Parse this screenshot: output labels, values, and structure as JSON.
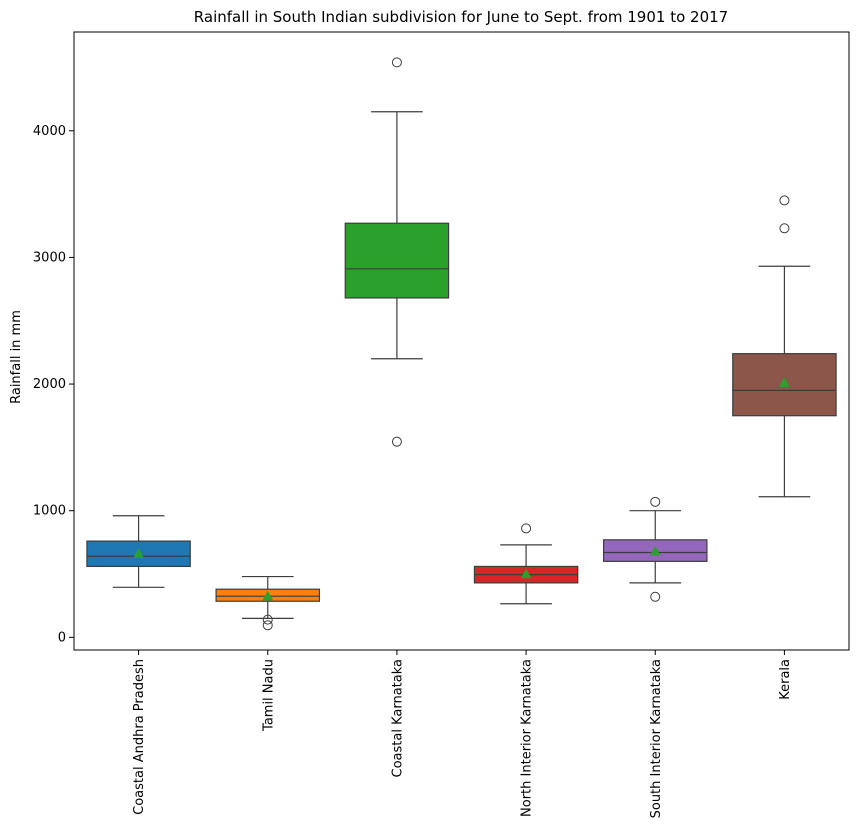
{
  "chart_data": {
    "type": "box",
    "title": "Rainfall in South Indian subdivision for June to Sept. from 1901 to 2017",
    "xlabel": "",
    "ylabel": "Rainfall in mm",
    "ylim": [
      -100,
      4780
    ],
    "yticks": [
      0,
      1000,
      2000,
      3000,
      4000
    ],
    "grid": false,
    "legend": "none",
    "mean_marker": "triangle",
    "mean_color": "#2ca02c",
    "categories": [
      "Coastal Andhra Pradesh",
      "Tamil Nadu",
      "Coastal Karnataka",
      "North Interior Karnataka",
      "South Interior Karnataka",
      "Kerala"
    ],
    "boxes": [
      {
        "color": "#1f77b4",
        "q1": 560,
        "median": 640,
        "q3": 760,
        "whisker_low": 395,
        "whisker_high": 960,
        "mean": 660,
        "outliers": []
      },
      {
        "color": "#ff7f0e",
        "q1": 285,
        "median": 325,
        "q3": 380,
        "whisker_low": 150,
        "whisker_high": 480,
        "mean": 325,
        "outliers": [
          140,
          95
        ]
      },
      {
        "color": "#2ca02c",
        "q1": 2680,
        "median": 2910,
        "q3": 3270,
        "whisker_low": 2200,
        "whisker_high": 4150,
        "mean": 2950,
        "outliers": [
          4540,
          1545
        ]
      },
      {
        "color": "#d62728",
        "q1": 430,
        "median": 495,
        "q3": 560,
        "whisker_low": 265,
        "whisker_high": 730,
        "mean": 500,
        "outliers": [
          860
        ]
      },
      {
        "color": "#9467bd",
        "q1": 600,
        "median": 670,
        "q3": 770,
        "whisker_low": 430,
        "whisker_high": 1000,
        "mean": 680,
        "outliers": [
          1070,
          320
        ]
      },
      {
        "color": "#8c564b",
        "q1": 1750,
        "median": 1950,
        "q3": 2240,
        "whisker_low": 1110,
        "whisker_high": 2930,
        "mean": 2010,
        "outliers": [
          3450,
          3230
        ]
      }
    ]
  }
}
